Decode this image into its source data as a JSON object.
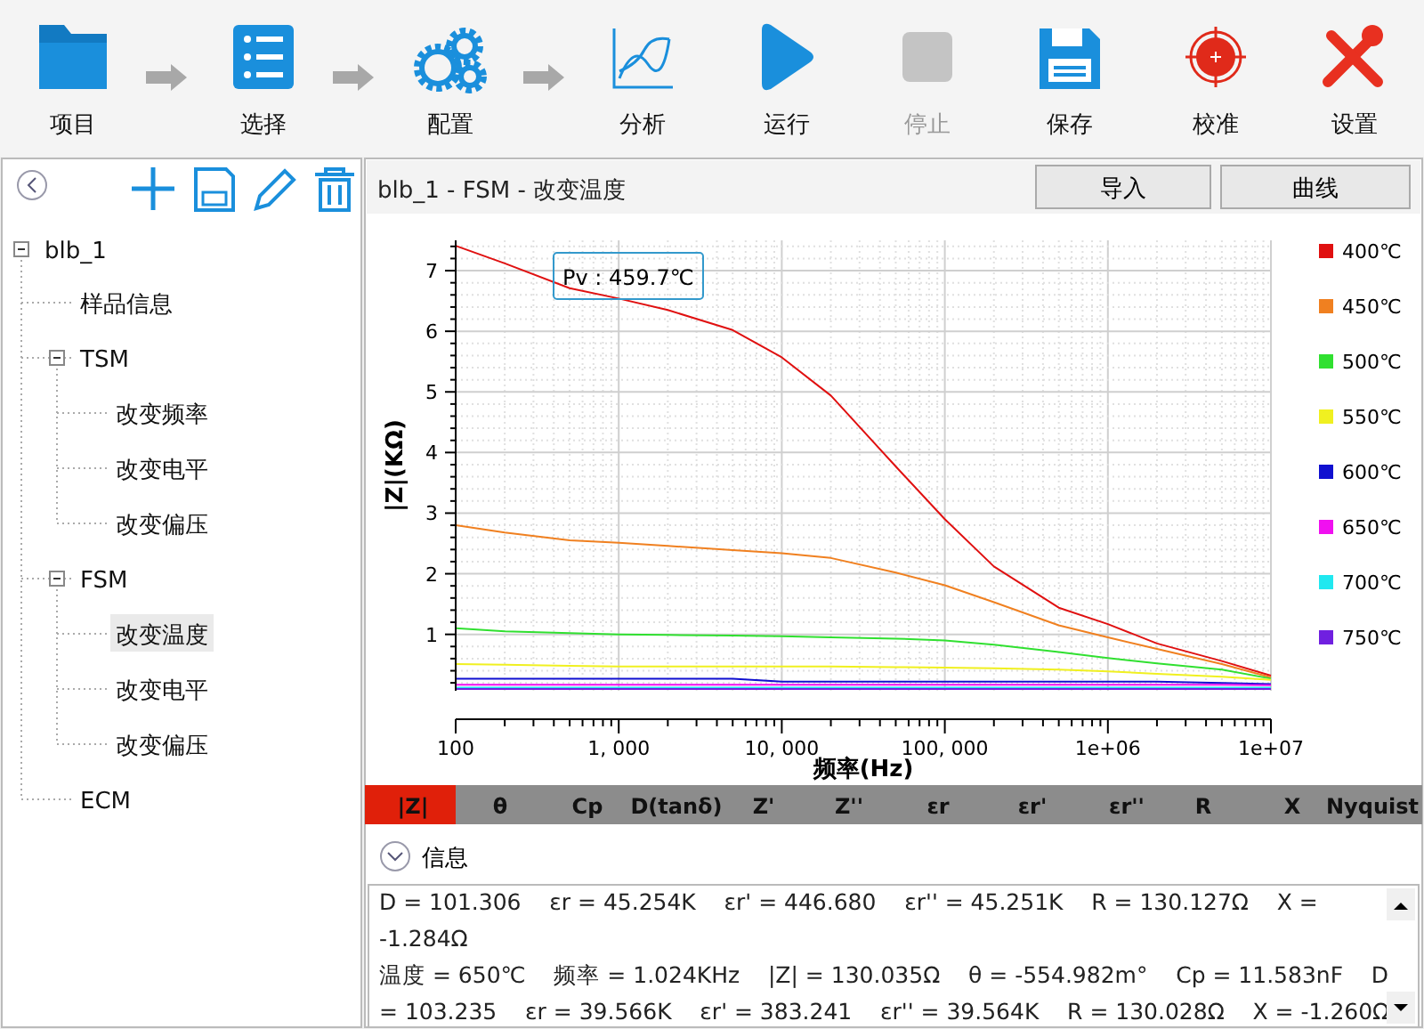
{
  "chart_data": {
    "type": "line",
    "title": "blb_1 - FSM - 改变温度",
    "xlabel": "频率(Hz)",
    "ylabel": "|Z|(KΩ)",
    "log": "x",
    "grid": true,
    "legend": "right",
    "line_style": "solid",
    "marker": "none",
    "xlim": [
      100,
      10000000
    ],
    "xticks": [
      {
        "value": 100,
        "label": "100"
      },
      {
        "value": 200,
        "label": null
      },
      {
        "value": 300,
        "label": null
      },
      {
        "value": 400,
        "label": null
      },
      {
        "value": 500,
        "label": null
      },
      {
        "value": 600,
        "label": null
      },
      {
        "value": 700,
        "label": null
      },
      {
        "value": 800,
        "label": null
      },
      {
        "value": 900,
        "label": null
      },
      {
        "value": 1000,
        "label": "1, 000"
      },
      {
        "value": 2000,
        "label": null
      },
      {
        "value": 3000,
        "label": null
      },
      {
        "value": 4000,
        "label": null
      },
      {
        "value": 5000,
        "label": null
      },
      {
        "value": 6000,
        "label": null
      },
      {
        "value": 7000,
        "label": null
      },
      {
        "value": 8000,
        "label": null
      },
      {
        "value": 9000,
        "label": null
      },
      {
        "value": 10000,
        "label": "10, 000"
      },
      {
        "value": 20000,
        "label": null
      },
      {
        "value": 30000,
        "label": null
      },
      {
        "value": 40000,
        "label": null
      },
      {
        "value": 50000,
        "label": null
      },
      {
        "value": 60000,
        "label": null
      },
      {
        "value": 70000,
        "label": null
      },
      {
        "value": 80000,
        "label": null
      },
      {
        "value": 90000,
        "label": null
      },
      {
        "value": 100000,
        "label": "100, 000"
      },
      {
        "value": 200000,
        "label": null
      },
      {
        "value": 300000,
        "label": null
      },
      {
        "value": 400000,
        "label": null
      },
      {
        "value": 500000,
        "label": null
      },
      {
        "value": 600000,
        "label": null
      },
      {
        "value": 700000,
        "label": null
      },
      {
        "value": 800000,
        "label": null
      },
      {
        "value": 900000,
        "label": null
      },
      {
        "value": 1000000,
        "label": "1e+06"
      },
      {
        "value": 2000000,
        "label": null
      },
      {
        "value": 3000000,
        "label": null
      },
      {
        "value": 4000000,
        "label": null
      },
      {
        "value": 5000000,
        "label": null
      },
      {
        "value": 6000000,
        "label": null
      },
      {
        "value": 7000000,
        "label": null
      },
      {
        "value": 8000000,
        "label": null
      },
      {
        "value": 9000000,
        "label": null
      },
      {
        "value": 10000000,
        "label": "1e+07"
      }
    ],
    "ylim": [
      0.07,
      7.5
    ],
    "yticks": [
      {
        "value": 0.2,
        "label": null
      },
      {
        "value": 0.4,
        "label": null
      },
      {
        "value": 0.6,
        "label": null
      },
      {
        "value": 0.8,
        "label": null
      },
      1,
      {
        "value": 1.2,
        "label": null
      },
      {
        "value": 1.4,
        "label": null
      },
      {
        "value": 1.6,
        "label": null
      },
      {
        "value": 1.8,
        "label": null
      },
      2,
      {
        "value": 2.2,
        "label": null
      },
      {
        "value": 2.4,
        "label": null
      },
      {
        "value": 2.6,
        "label": null
      },
      {
        "value": 2.8,
        "label": null
      },
      3,
      {
        "value": 3.2,
        "label": null
      },
      {
        "value": 3.4,
        "label": null
      },
      {
        "value": 3.6,
        "label": null
      },
      {
        "value": 3.8,
        "label": null
      },
      4,
      {
        "value": 4.2,
        "label": null
      },
      {
        "value": 4.4,
        "label": null
      },
      {
        "value": 4.6,
        "label": null
      },
      {
        "value": 4.8,
        "label": null
      },
      5,
      {
        "value": 5.2,
        "label": null
      },
      {
        "value": 5.4,
        "label": null
      },
      {
        "value": 5.6,
        "label": null
      },
      {
        "value": 5.8,
        "label": null
      },
      6,
      {
        "value": 6.2,
        "label": null
      },
      {
        "value": 6.4,
        "label": null
      },
      {
        "value": 6.6,
        "label": null
      },
      {
        "value": 6.8,
        "label": null
      },
      7,
      {
        "value": 7.2,
        "label": null
      },
      {
        "value": 7.4,
        "label": null
      }
    ],
    "x": [
      100,
      200,
      500,
      1000,
      2000,
      5000,
      10000,
      20000,
      50000,
      100000,
      200000,
      500000,
      1000000,
      2000000,
      5000000,
      10000000
    ],
    "series": [
      {
        "name": "400℃",
        "color": "#e01010",
        "values": [
          7.41,
          7.12,
          6.71,
          6.54,
          6.35,
          6.02,
          5.57,
          4.94,
          3.77,
          2.9,
          2.12,
          1.44,
          1.17,
          0.85,
          0.56,
          0.32
        ]
      },
      {
        "name": "450℃",
        "color": "#f08020",
        "values": [
          2.8,
          2.68,
          2.55,
          2.51,
          2.46,
          2.39,
          2.34,
          2.26,
          2.02,
          1.81,
          1.53,
          1.15,
          0.95,
          0.76,
          0.51,
          0.29
        ]
      },
      {
        "name": "500℃",
        "color": "#30e030",
        "values": [
          1.1,
          1.05,
          1.02,
          1.0,
          0.99,
          0.98,
          0.97,
          0.95,
          0.93,
          0.9,
          0.83,
          0.71,
          0.61,
          0.52,
          0.42,
          0.27
        ]
      },
      {
        "name": "550℃",
        "color": "#f0f020",
        "values": [
          0.51,
          0.5,
          0.48,
          0.47,
          0.47,
          0.47,
          0.47,
          0.47,
          0.46,
          0.45,
          0.44,
          0.42,
          0.39,
          0.35,
          0.3,
          0.25
        ]
      },
      {
        "name": "600℃",
        "color": "#1010d0",
        "values": [
          0.27,
          0.27,
          0.27,
          0.27,
          0.27,
          0.27,
          0.22,
          0.22,
          0.22,
          0.22,
          0.22,
          0.22,
          0.22,
          0.22,
          0.2,
          0.18
        ]
      },
      {
        "name": "650℃",
        "color": "#f010f0",
        "values": [
          0.17,
          0.17,
          0.17,
          0.17,
          0.17,
          0.17,
          0.17,
          0.17,
          0.17,
          0.17,
          0.17,
          0.17,
          0.17,
          0.17,
          0.17,
          0.16
        ]
      },
      {
        "name": "700℃",
        "color": "#20e8f0",
        "values": [
          0.12,
          0.12,
          0.12,
          0.12,
          0.12,
          0.12,
          0.12,
          0.12,
          0.12,
          0.12,
          0.12,
          0.12,
          0.12,
          0.12,
          0.12,
          0.12
        ]
      },
      {
        "name": "750℃",
        "color": "#7020e0",
        "values": [
          0.1,
          0.1,
          0.1,
          0.1,
          0.1,
          0.1,
          0.1,
          0.1,
          0.1,
          0.1,
          0.1,
          0.1,
          0.1,
          0.1,
          0.1,
          0.1
        ]
      }
    ],
    "annotations": [
      "Pv : 459.7℃",
      "项目",
      "选择",
      "配置",
      "分析",
      "运行",
      "停止",
      "保存",
      "校准",
      "设置",
      "导入",
      "曲线",
      "blb_1",
      "样品信息",
      "TSM",
      "改变频率",
      "改变电平",
      "改变偏压",
      "FSM",
      "改变温度",
      "改变电平",
      "改变偏压",
      "ECM",
      "|Z|",
      "θ",
      "Cp",
      "D(tanδ)",
      "Z'",
      "Z''",
      "εr",
      "εr'",
      "εr''",
      "R",
      "X",
      "Nyquist",
      "信息",
      "D = 101.306    εr = 45.254K    εr' = 446.680    εr'' = 45.251K    R = 130.127Ω    X =",
      "-1.284Ω",
      "温度 = 650℃    频率 = 1.024KHz    |Z| = 130.035Ω    θ = -554.982m°    Cp = 11.583nF    D",
      "= 103.235    εr = 39.566K    εr' = 383.241    εr'' = 39.564K    R = 130.028Ω    X = -1.260Ω"
    ]
  }
}
